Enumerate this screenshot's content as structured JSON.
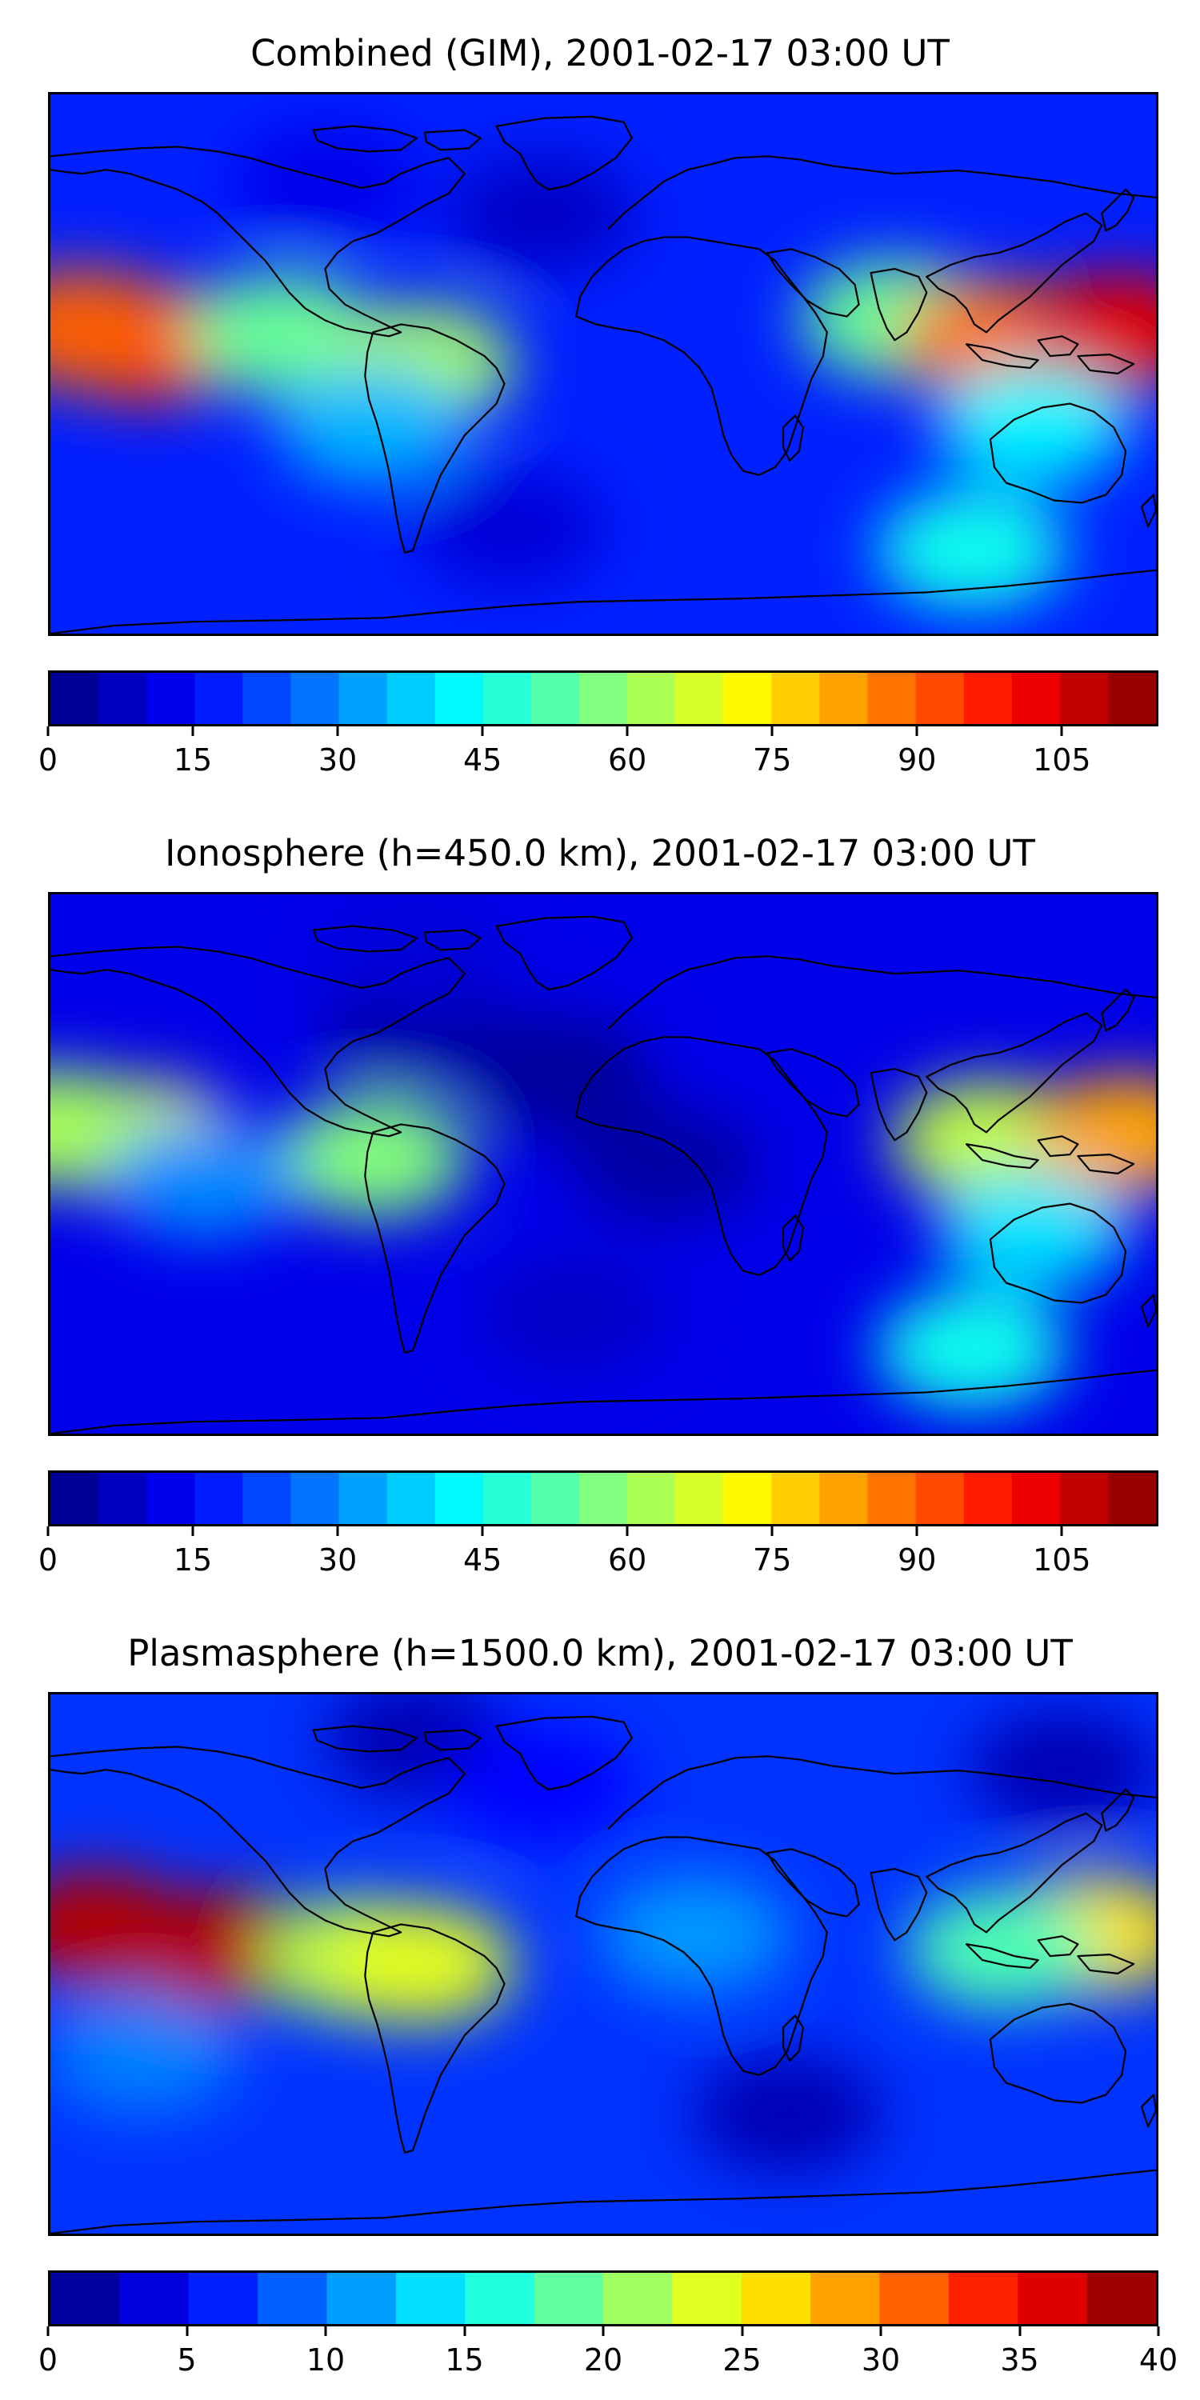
{
  "chart_data": [
    {
      "type": "heatmap",
      "title": "Combined (GIM), 2001-02-17 03:00 UT",
      "xlim": [
        -180,
        180
      ],
      "ylim": [
        -90,
        90
      ],
      "colormap": "jet",
      "colorbar": {
        "min": 0,
        "max": 115,
        "step": 5,
        "ticks": [
          0,
          15,
          30,
          45,
          60,
          75,
          90,
          105
        ]
      },
      "background_value": 18,
      "features": [
        {
          "lon": -148,
          "lat": 7,
          "value": 100
        },
        {
          "lon": -170,
          "lat": 12,
          "value": 90
        },
        {
          "lon": -105,
          "lat": 10,
          "value": 55
        },
        {
          "lon": -60,
          "lat": 0,
          "value": 62
        },
        {
          "lon": -75,
          "lat": -20,
          "value": 35
        },
        {
          "lon": 95,
          "lat": 15,
          "value": 55
        },
        {
          "lon": 128,
          "lat": 8,
          "value": 88
        },
        {
          "lon": 168,
          "lat": 11,
          "value": 104
        },
        {
          "lon": 140,
          "lat": -20,
          "value": 42
        },
        {
          "lon": 120,
          "lat": -62,
          "value": 45
        },
        {
          "lon": -20,
          "lat": 50,
          "value": 8
        },
        {
          "lon": -90,
          "lat": 60,
          "value": 12
        },
        {
          "lon": -30,
          "lat": -55,
          "value": 10
        }
      ]
    },
    {
      "type": "heatmap",
      "title": "Ionosphere  (h=450.0 km), 2001-02-17 03:00 UT",
      "xlim": [
        -180,
        180
      ],
      "ylim": [
        -90,
        90
      ],
      "colormap": "jet",
      "colorbar": {
        "min": 0,
        "max": 115,
        "step": 5,
        "ticks": [
          0,
          15,
          30,
          45,
          60,
          75,
          90,
          105
        ]
      },
      "background_value": 12,
      "features": [
        {
          "lon": -150,
          "lat": 8,
          "value": 68
        },
        {
          "lon": -178,
          "lat": 12,
          "value": 62
        },
        {
          "lon": -75,
          "lat": 2,
          "value": 58
        },
        {
          "lon": -130,
          "lat": -5,
          "value": 30
        },
        {
          "lon": 125,
          "lat": 8,
          "value": 65
        },
        {
          "lon": 170,
          "lat": 10,
          "value": 82
        },
        {
          "lon": 140,
          "lat": -22,
          "value": 40
        },
        {
          "lon": 120,
          "lat": -62,
          "value": 45
        },
        {
          "lon": -15,
          "lat": 30,
          "value": 3
        },
        {
          "lon": 20,
          "lat": 0,
          "value": 4
        },
        {
          "lon": -60,
          "lat": 45,
          "value": 4
        },
        {
          "lon": -60,
          "lat": 70,
          "value": 10
        },
        {
          "lon": -10,
          "lat": -50,
          "value": 8
        }
      ]
    },
    {
      "type": "heatmap",
      "title": "Plasmasphere (h=1500.0 km), 2001-02-17 03:00 UT",
      "xlim": [
        -180,
        180
      ],
      "ylim": [
        -90,
        90
      ],
      "colormap": "jet",
      "colorbar": {
        "min": 0,
        "max": 40,
        "step": 2.5,
        "ticks": [
          0,
          5,
          10,
          15,
          20,
          25,
          30,
          35,
          40
        ]
      },
      "background_value": 7,
      "features": [
        {
          "lon": -165,
          "lat": 12,
          "value": 38
        },
        {
          "lon": -125,
          "lat": 5,
          "value": 38
        },
        {
          "lon": -80,
          "lat": 2,
          "value": 22
        },
        {
          "lon": -60,
          "lat": 0,
          "value": 24
        },
        {
          "lon": 160,
          "lat": 10,
          "value": 26
        },
        {
          "lon": 130,
          "lat": 5,
          "value": 18
        },
        {
          "lon": 30,
          "lat": 10,
          "value": 11
        },
        {
          "lon": -150,
          "lat": -30,
          "value": 10
        },
        {
          "lon": -60,
          "lat": 75,
          "value": 2
        },
        {
          "lon": 150,
          "lat": 65,
          "value": 2
        },
        {
          "lon": 60,
          "lat": -50,
          "value": 2
        },
        {
          "lon": -20,
          "lat": 60,
          "value": 5
        }
      ]
    }
  ]
}
